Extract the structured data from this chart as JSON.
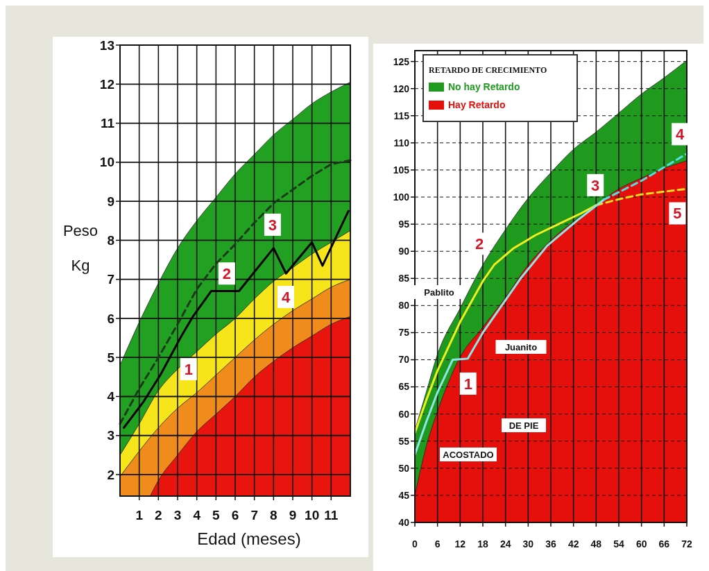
{
  "chart_data": [
    {
      "type": "area",
      "xlabel": "Edad (meses)",
      "ylabel": "Peso Kg",
      "xlim": [
        0,
        12
      ],
      "ylim": [
        1.45,
        13
      ],
      "xticks": [
        1,
        2,
        3,
        4,
        5,
        6,
        7,
        8,
        9,
        10,
        11
      ],
      "yticks": [
        2,
        3,
        4,
        5,
        6,
        7,
        8,
        9,
        10,
        11,
        12,
        13
      ],
      "grid": true,
      "series": [
        {
          "type": "area",
          "color": "#22a022",
          "x": [
            0,
            1,
            2,
            3,
            4,
            5,
            6,
            7,
            8,
            9,
            10,
            11,
            12
          ],
          "values": [
            4.8,
            5.9,
            6.9,
            7.8,
            8.5,
            9.1,
            9.7,
            10.2,
            10.7,
            11.1,
            11.5,
            11.8,
            12.05
          ]
        },
        {
          "type": "area",
          "color": "#f5e51a",
          "x": [
            0,
            1,
            2,
            3,
            4,
            5,
            6,
            7,
            8,
            9,
            10,
            11,
            12
          ],
          "values": [
            2.5,
            3.3,
            4.15,
            4.7,
            5.15,
            5.6,
            6.0,
            6.5,
            6.95,
            7.3,
            7.65,
            7.95,
            8.25
          ]
        },
        {
          "type": "area",
          "color": "#ef8c1c",
          "x": [
            0,
            1,
            2,
            3,
            4,
            5,
            6,
            7,
            8,
            9,
            10,
            11,
            12
          ],
          "values": [
            1.95,
            2.6,
            3.2,
            3.7,
            4.1,
            4.55,
            5.0,
            5.45,
            5.85,
            6.2,
            6.5,
            6.8,
            7.0
          ]
        },
        {
          "type": "area",
          "color": "#e8140e",
          "x": [
            1.6,
            2,
            3,
            4,
            5,
            6,
            7,
            8,
            9,
            10,
            11,
            12
          ],
          "values": [
            1.48,
            1.85,
            2.5,
            3.1,
            3.55,
            4.0,
            4.5,
            4.9,
            5.25,
            5.55,
            5.85,
            6.05
          ]
        },
        {
          "type": "line",
          "color": "#1a3a1a",
          "line_style": "dashed",
          "x": [
            0,
            1,
            2,
            3,
            4,
            5,
            6,
            7,
            8,
            9,
            10,
            11,
            12
          ],
          "values": [
            3.3,
            4.2,
            5.0,
            5.85,
            6.75,
            7.4,
            7.9,
            8.45,
            8.95,
            9.3,
            9.65,
            9.95,
            10.05
          ]
        },
        {
          "type": "line",
          "color": "#000000",
          "line_style": "solid",
          "x": [
            0.2,
            1.2,
            2.1,
            3.2,
            3.8,
            4.75,
            6.2,
            8,
            8.65,
            10,
            10.55,
            11.9
          ],
          "values": [
            3.2,
            3.85,
            4.55,
            5.55,
            6.05,
            6.7,
            6.7,
            7.8,
            7.15,
            7.95,
            7.35,
            8.75
          ]
        }
      ],
      "annotations": [
        {
          "text": "1",
          "x": 3.57,
          "y": 4.7
        },
        {
          "text": "2",
          "x": 5.56,
          "y": 7.15
        },
        {
          "text": "3",
          "x": 7.95,
          "y": 8.4
        },
        {
          "text": "4",
          "x": 8.64,
          "y": 6.55
        }
      ]
    },
    {
      "type": "area",
      "legend_title": "RETARDO DE CRECIMIENTO",
      "legend": "top left",
      "xlim": [
        0,
        72
      ],
      "ylim": [
        40,
        127
      ],
      "xticks": [
        0,
        6,
        12,
        18,
        24,
        30,
        36,
        42,
        48,
        54,
        60,
        66,
        72
      ],
      "yticks": [
        40,
        45,
        50,
        55,
        60,
        65,
        70,
        75,
        80,
        85,
        90,
        95,
        100,
        105,
        110,
        115,
        120,
        125
      ],
      "grid": true,
      "series": [
        {
          "type": "area",
          "name": "No hay Retardo",
          "color": "#1f9a1f",
          "x": [
            0,
            3,
            6,
            12,
            18,
            24,
            30,
            36,
            42,
            48,
            54,
            60,
            66,
            72
          ],
          "values": [
            57,
            64,
            71,
            79.5,
            87.5,
            94,
            99.8,
            104.5,
            108.8,
            112,
            115.5,
            119,
            122,
            125.2
          ]
        },
        {
          "type": "area",
          "name": "Hay Retardo",
          "color": "#e5100c",
          "x": [
            0,
            3,
            6,
            12,
            18,
            24,
            30,
            36,
            42,
            48,
            54,
            60,
            66,
            72
          ],
          "values": [
            45,
            54,
            60.5,
            70.5,
            76,
            81.5,
            87.5,
            92,
            95.5,
            98.5,
            101.5,
            103.5,
            105.3,
            106.7
          ]
        },
        {
          "type": "line",
          "color": "#f2f01e",
          "line_style": "solid",
          "x": [
            0,
            3,
            6,
            12,
            18,
            21,
            26,
            32,
            38,
            44,
            48
          ],
          "values": [
            56.5,
            62.5,
            68,
            77,
            84.5,
            87.5,
            90.5,
            93,
            95,
            97,
            98.5
          ]
        },
        {
          "type": "line",
          "color": "#f2e01e",
          "line_style": "dashed",
          "x": [
            48,
            54,
            60,
            66,
            72
          ],
          "values": [
            98.5,
            99.6,
            100.5,
            101,
            101.5
          ]
        },
        {
          "type": "line",
          "color": "#8ee6ea",
          "line_style": "solid",
          "x": [
            0,
            3,
            6,
            10,
            14,
            18,
            23,
            28,
            35,
            43,
            50
          ],
          "values": [
            52.5,
            58.5,
            64,
            70,
            70.2,
            75,
            80,
            85,
            91,
            95.7,
            99.5
          ]
        },
        {
          "type": "line",
          "color": "#4fe0e6",
          "line_style": "dashed",
          "x": [
            50,
            60,
            66,
            72
          ],
          "values": [
            99.5,
            103,
            105.5,
            108
          ]
        }
      ],
      "annotations": [
        {
          "text": "1",
          "x": 14.1,
          "y": 65.6
        },
        {
          "text": "2",
          "x": 17.1,
          "y": 91.4
        },
        {
          "text": "3",
          "x": 47.8,
          "y": 102.2
        },
        {
          "text": "4",
          "x": 70.2,
          "y": 111.6
        },
        {
          "text": "5",
          "x": 69.5,
          "y": 97
        },
        "Pablito",
        "Juanito",
        "DE PIE",
        "ACOSTADO"
      ]
    }
  ]
}
